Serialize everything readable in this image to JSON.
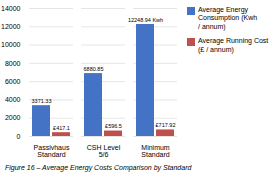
{
  "chart_data": {
    "type": "bar",
    "categories": [
      "Passivhaus Standard",
      "CSH Level 5/6",
      "Minimum Standard"
    ],
    "series": [
      {
        "name": "Average Energy Consumption (Kwh\n / annum)",
        "color": "#4472C4",
        "values": [
          3371.33,
          6880.85,
          12248.94
        ],
        "value_labels": [
          "3371.33",
          "6880.85",
          "12248.94 Kwh"
        ]
      },
      {
        "name": "Average Running Cost (£ / annum)",
        "color": "#C0504D",
        "values": [
          417.1,
          596.5,
          717.92
        ],
        "value_labels": [
          "£417.1",
          "£596.5",
          "£717.92"
        ]
      }
    ],
    "ylim": [
      0,
      14000
    ],
    "yticks": [
      0,
      2000,
      4000,
      6000,
      8000,
      10000,
      12000,
      14000
    ],
    "grid": true,
    "data_labels": true,
    "legend": "right",
    "caption": "Figure 16 – Average Energy Costs Comparison by Standard"
  }
}
